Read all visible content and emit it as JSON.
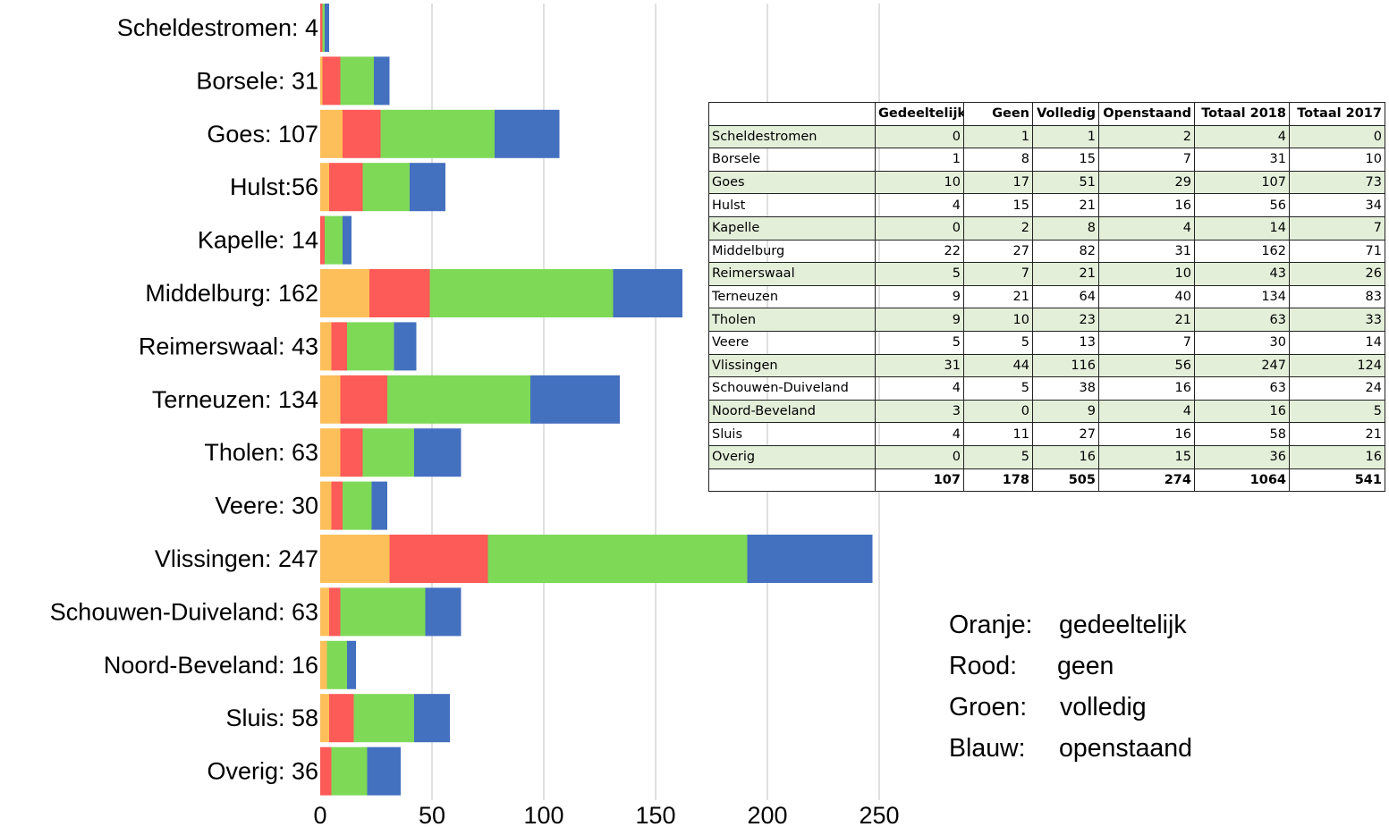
{
  "chart_data": {
    "type": "bar",
    "orientation": "horizontal",
    "stacked": true,
    "categories": [
      "Scheldestromen: 4",
      "Borsele: 31",
      "Goes: 107",
      "Hulst:56",
      "Kapelle: 14",
      "Middelburg: 162",
      "Reimerswaal: 43",
      "Terneuzen: 134",
      "Tholen: 63",
      "Veere: 30",
      "Vlissingen: 247",
      "Schouwen-Duiveland: 63",
      "Noord-Beveland: 16",
      "Sluis: 58",
      "Overig: 36"
    ],
    "series": [
      {
        "color": "#fdbf5a",
        "values": [
          0,
          1,
          10,
          4,
          0,
          22,
          5,
          9,
          9,
          5,
          31,
          4,
          3,
          4,
          0
        ]
      },
      {
        "color": "#fd5b58",
        "values": [
          1,
          8,
          17,
          15,
          2,
          27,
          7,
          21,
          10,
          5,
          44,
          5,
          0,
          11,
          5
        ]
      },
      {
        "color": "#7ed957",
        "values": [
          1,
          15,
          51,
          21,
          8,
          82,
          21,
          64,
          23,
          13,
          116,
          38,
          9,
          27,
          16
        ]
      },
      {
        "color": "#4470c0",
        "values": [
          2,
          7,
          29,
          16,
          4,
          31,
          10,
          40,
          21,
          7,
          56,
          16,
          4,
          16,
          15
        ]
      }
    ],
    "xlim": [
      0,
      250
    ],
    "xticks": [
      "0",
      "50",
      "100",
      "150",
      "200",
      "250"
    ],
    "grid": "vertical",
    "xlabel": "",
    "ylabel": "",
    "title": ""
  },
  "table": {
    "headers": [
      "",
      "Gedeeltelijk",
      "Geen",
      "Volledig",
      "Openstaand",
      "Totaal 2018",
      "Totaal 2017"
    ],
    "rows": [
      [
        "Scheldestromen",
        "0",
        "1",
        "1",
        "2",
        "4",
        "0"
      ],
      [
        "Borsele",
        "1",
        "8",
        "15",
        "7",
        "31",
        "10"
      ],
      [
        "Goes",
        "10",
        "17",
        "51",
        "29",
        "107",
        "73"
      ],
      [
        "Hulst",
        "4",
        "15",
        "21",
        "16",
        "56",
        "34"
      ],
      [
        "Kapelle",
        "0",
        "2",
        "8",
        "4",
        "14",
        "7"
      ],
      [
        "Middelburg",
        "22",
        "27",
        "82",
        "31",
        "162",
        "71"
      ],
      [
        "Reimerswaal",
        "5",
        "7",
        "21",
        "10",
        "43",
        "26"
      ],
      [
        "Terneuzen",
        "9",
        "21",
        "64",
        "40",
        "134",
        "83"
      ],
      [
        "Tholen",
        "9",
        "10",
        "23",
        "21",
        "63",
        "33"
      ],
      [
        "Veere",
        "5",
        "5",
        "13",
        "7",
        "30",
        "14"
      ],
      [
        "Vlissingen",
        "31",
        "44",
        "116",
        "56",
        "247",
        "124"
      ],
      [
        "Schouwen-Duiveland",
        "4",
        "5",
        "38",
        "16",
        "63",
        "24"
      ],
      [
        "Noord-Beveland",
        "3",
        "0",
        "9",
        "4",
        "16",
        "5"
      ],
      [
        "Sluis",
        "4",
        "11",
        "27",
        "16",
        "58",
        "21"
      ],
      [
        "Overig",
        "0",
        "5",
        "16",
        "15",
        "36",
        "16"
      ]
    ],
    "totals": [
      "",
      "107",
      "178",
      "505",
      "274",
      "1064",
      "541"
    ]
  },
  "legend_note": {
    "items": [
      {
        "key": "Oranje:",
        "value": "gedeeltelijk"
      },
      {
        "key": "Rood:",
        "value": "geen"
      },
      {
        "key": "Groen:",
        "value": "volledig"
      },
      {
        "key": "Blauw:",
        "value": "openstaand"
      }
    ]
  }
}
